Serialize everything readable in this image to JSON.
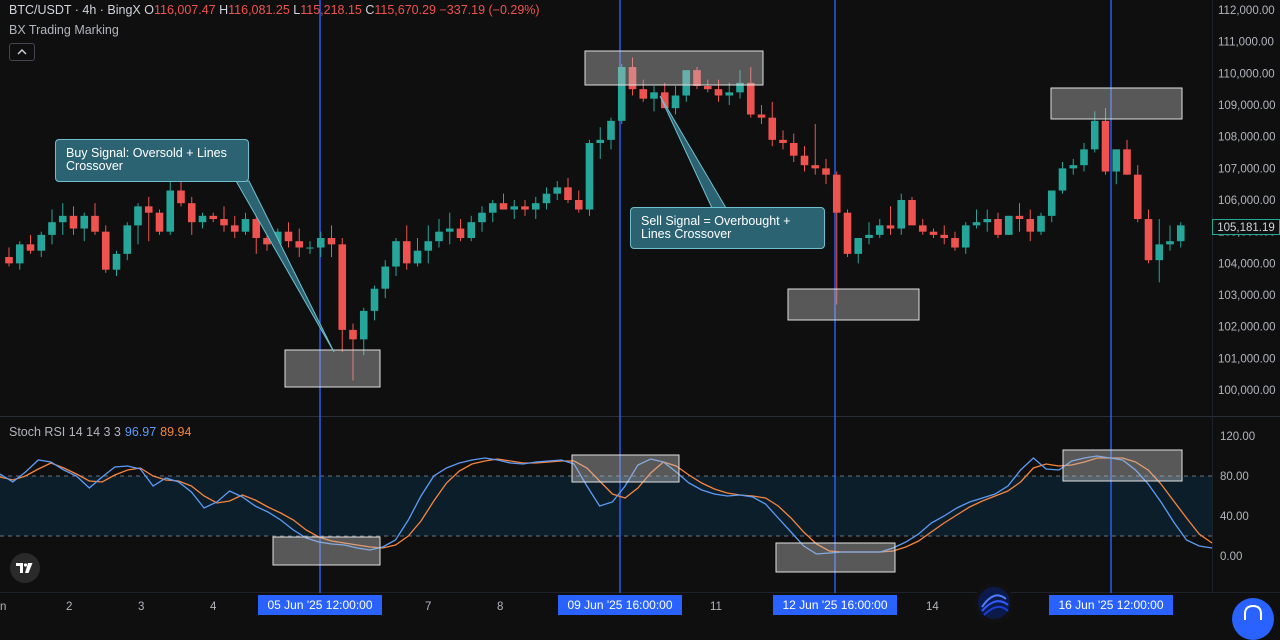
{
  "header": {
    "symbol": "BTC/USDT · 4h · BingX",
    "open_label": "O",
    "open": "116,007.47",
    "high_label": "H",
    "high": "116,081.25",
    "low_label": "L",
    "low": "115,218.15",
    "close_label": "C",
    "close": "115,670.29",
    "change": "−337.19 (−0.29%)"
  },
  "indicator_label": "BX Trading Marking",
  "stoch": {
    "name": "Stoch RSI 14 14 3 3",
    "k": "96.97",
    "d": "89.94"
  },
  "price_axis": [
    "112,000.00",
    "111,000.00",
    "110,000.00",
    "109,000.00",
    "108,000.00",
    "107,000.00",
    "106,000.00",
    "105,000.00",
    "104,000.00",
    "103,000.00",
    "102,000.00",
    "101,000.00",
    "100,000.00"
  ],
  "current_price": "105,181.19",
  "stoch_axis": [
    "120.00",
    "80.00",
    "40.00",
    "0.00"
  ],
  "time_axis": [
    "n",
    "2",
    "3",
    "4",
    "7",
    "8",
    "11",
    "14"
  ],
  "time_badges": [
    "05 Jun '25   12:00:00",
    "09 Jun '25   16:00:00",
    "12 Jun '25   16:00:00",
    "16 Jun '25   12:00:00"
  ],
  "callouts": {
    "buy": "Buy Signal: Oversold + Lines Crossover",
    "sell": "Sell Signal = Overbought + Lines Crossover"
  },
  "colors": {
    "up": "#26a69a",
    "down": "#ef5350",
    "k_line": "#5b9cf6",
    "d_line": "#f7853e",
    "marker": "#2962ff",
    "background": "#0f0f0f"
  },
  "chart_data": {
    "type": "candlestick",
    "interval": "4h",
    "ylim": [
      99700,
      112100
    ],
    "candles": [
      [
        104200,
        104500,
        103900,
        104000
      ],
      [
        104000,
        104700,
        103800,
        104600
      ],
      [
        104600,
        104900,
        104300,
        104400
      ],
      [
        104400,
        105000,
        104200,
        104900
      ],
      [
        104900,
        105700,
        104600,
        105300
      ],
      [
        105300,
        105900,
        104900,
        105500
      ],
      [
        105500,
        105800,
        104900,
        105100
      ],
      [
        105100,
        105600,
        104700,
        105500
      ],
      [
        105500,
        105900,
        104900,
        105000
      ],
      [
        105000,
        105200,
        103700,
        103800
      ],
      [
        103800,
        104400,
        103600,
        104300
      ],
      [
        104300,
        105300,
        104100,
        105200
      ],
      [
        105200,
        105900,
        104600,
        105800
      ],
      [
        105800,
        106100,
        104700,
        105600
      ],
      [
        105600,
        105700,
        104900,
        105000
      ],
      [
        105000,
        106800,
        104900,
        106300
      ],
      [
        106300,
        106600,
        105800,
        105900
      ],
      [
        105900,
        106100,
        104900,
        105300
      ],
      [
        105300,
        105600,
        105100,
        105500
      ],
      [
        105500,
        105600,
        105300,
        105400
      ],
      [
        105400,
        105800,
        105000,
        105200
      ],
      [
        105200,
        105500,
        104800,
        105000
      ],
      [
        105000,
        105600,
        104900,
        105400
      ],
      [
        105400,
        105600,
        104300,
        104800
      ],
      [
        104800,
        105000,
        104400,
        104600
      ],
      [
        104600,
        105100,
        104400,
        105000
      ],
      [
        105000,
        105300,
        104500,
        104700
      ],
      [
        104700,
        105100,
        104200,
        104500
      ],
      [
        104500,
        104700,
        104300,
        104500
      ],
      [
        104500,
        105000,
        104200,
        104800
      ],
      [
        104800,
        105200,
        104200,
        104600
      ],
      [
        104600,
        104800,
        101200,
        101900
      ],
      [
        101900,
        102100,
        100300,
        101600
      ],
      [
        101600,
        102600,
        101100,
        102500
      ],
      [
        102500,
        103300,
        102200,
        103200
      ],
      [
        103200,
        104100,
        102900,
        103900
      ],
      [
        103900,
        104800,
        103600,
        104700
      ],
      [
        104700,
        105200,
        103800,
        104000
      ],
      [
        104000,
        104800,
        103900,
        104400
      ],
      [
        104400,
        105200,
        104000,
        104700
      ],
      [
        104700,
        105400,
        104500,
        105000
      ],
      [
        105000,
        105600,
        104600,
        105100
      ],
      [
        105100,
        105400,
        104700,
        104800
      ],
      [
        104800,
        105500,
        104700,
        105300
      ],
      [
        105300,
        105800,
        105000,
        105600
      ],
      [
        105600,
        106000,
        105300,
        105900
      ],
      [
        105900,
        106200,
        105700,
        105700
      ],
      [
        105700,
        106000,
        105400,
        105800
      ],
      [
        105800,
        106000,
        105500,
        105700
      ],
      [
        105700,
        106100,
        105400,
        105900
      ],
      [
        105900,
        106400,
        105700,
        106200
      ],
      [
        106200,
        106600,
        106000,
        106400
      ],
      [
        106400,
        106700,
        105900,
        106000
      ],
      [
        106000,
        106300,
        105600,
        105700
      ],
      [
        105700,
        107900,
        105500,
        107800
      ],
      [
        107800,
        108300,
        107300,
        107900
      ],
      [
        107900,
        108600,
        107600,
        108500
      ],
      [
        108500,
        110300,
        108400,
        110200
      ],
      [
        110200,
        110500,
        109300,
        109500
      ],
      [
        109500,
        109800,
        109100,
        109200
      ],
      [
        109200,
        109600,
        108800,
        109400
      ],
      [
        109400,
        109700,
        108900,
        108900
      ],
      [
        108900,
        109600,
        108700,
        109300
      ],
      [
        109300,
        110100,
        109100,
        110100
      ],
      [
        110100,
        110200,
        109500,
        109600
      ],
      [
        109600,
        109800,
        109400,
        109500
      ],
      [
        109500,
        109800,
        109100,
        109300
      ],
      [
        109300,
        109700,
        109000,
        109400
      ],
      [
        109400,
        110100,
        109200,
        109700
      ],
      [
        109700,
        110200,
        108600,
        108700
      ],
      [
        108700,
        109000,
        108400,
        108600
      ],
      [
        108600,
        109100,
        107700,
        107900
      ],
      [
        107900,
        108200,
        107600,
        107800
      ],
      [
        107800,
        108100,
        107200,
        107400
      ],
      [
        107400,
        107700,
        106900,
        107100
      ],
      [
        107100,
        108400,
        106800,
        107000
      ],
      [
        107000,
        107300,
        106500,
        106800
      ],
      [
        106800,
        106900,
        102700,
        105600
      ],
      [
        105600,
        105700,
        104200,
        104300
      ],
      [
        104300,
        104800,
        104000,
        104800
      ],
      [
        104800,
        105300,
        104600,
        104900
      ],
      [
        104900,
        105400,
        104800,
        105200
      ],
      [
        105200,
        105800,
        104900,
        105100
      ],
      [
        105100,
        106200,
        104900,
        106000
      ],
      [
        106000,
        106100,
        105200,
        105200
      ],
      [
        105200,
        105400,
        104900,
        105000
      ],
      [
        105000,
        105100,
        104800,
        104900
      ],
      [
        104900,
        105200,
        104600,
        104800
      ],
      [
        104800,
        105000,
        104400,
        104500
      ],
      [
        104500,
        105300,
        104300,
        105200
      ],
      [
        105200,
        105700,
        105100,
        105300
      ],
      [
        105300,
        105700,
        105000,
        105400
      ],
      [
        105400,
        105600,
        104800,
        104900
      ],
      [
        104900,
        105500,
        104900,
        105500
      ],
      [
        105500,
        105900,
        105000,
        105400
      ],
      [
        105400,
        105700,
        104700,
        105000
      ],
      [
        105000,
        105600,
        104900,
        105500
      ],
      [
        105500,
        106300,
        105300,
        106300
      ],
      [
        106300,
        107200,
        106200,
        107000
      ],
      [
        107000,
        107300,
        106800,
        107100
      ],
      [
        107100,
        107800,
        106900,
        107600
      ],
      [
        107600,
        108800,
        107500,
        108500
      ],
      [
        108500,
        108900,
        106800,
        106900
      ],
      [
        106900,
        107600,
        106500,
        107600
      ],
      [
        107600,
        107900,
        106800,
        106800
      ],
      [
        106800,
        107100,
        105300,
        105400
      ],
      [
        105400,
        105700,
        104000,
        104100
      ],
      [
        104100,
        105400,
        103400,
        104600
      ],
      [
        104600,
        105200,
        104400,
        104700
      ],
      [
        104700,
        105300,
        104500,
        105200
      ]
    ],
    "stoch_k": [
      82,
      74,
      84,
      96,
      94,
      86,
      80,
      68,
      79,
      89,
      90,
      87,
      70,
      78,
      74,
      64,
      48,
      54,
      65,
      59,
      50,
      44,
      36,
      26,
      18,
      14,
      12,
      11,
      8,
      6,
      9,
      16,
      36,
      60,
      80,
      88,
      93,
      96,
      98,
      96,
      93,
      92,
      94,
      95,
      96,
      92,
      70,
      50,
      54,
      70,
      91,
      97,
      94,
      84,
      73,
      66,
      62,
      60,
      61,
      59,
      52,
      38,
      24,
      10,
      2,
      3,
      4,
      4,
      4,
      4,
      8,
      14,
      22,
      33,
      40,
      48,
      54,
      58,
      62,
      70,
      86,
      98,
      87,
      86,
      95,
      98,
      100,
      98,
      96,
      86,
      72,
      54,
      34,
      16,
      10,
      8
    ],
    "stoch_d": [
      79,
      76,
      80,
      87,
      93,
      88,
      82,
      75,
      74,
      81,
      86,
      88,
      80,
      76,
      75,
      70,
      60,
      53,
      55,
      61,
      56,
      49,
      43,
      36,
      26,
      19,
      15,
      13,
      11,
      9,
      8,
      11,
      20,
      35,
      55,
      73,
      85,
      92,
      95,
      97,
      95,
      93,
      93,
      94,
      95,
      95,
      88,
      75,
      62,
      58,
      68,
      83,
      94,
      90,
      81,
      73,
      67,
      63,
      61,
      60,
      58,
      50,
      38,
      24,
      12,
      5,
      4,
      4,
      4,
      4,
      5,
      9,
      15,
      24,
      33,
      41,
      49,
      55,
      60,
      65,
      74,
      88,
      92,
      90,
      91,
      94,
      98,
      98,
      98,
      94,
      86,
      72,
      55,
      38,
      22,
      13
    ],
    "stoch_ylim": [
      -10,
      132
    ],
    "overbought": 80,
    "oversold": 20,
    "vertical_markers": [
      "05 Jun '25 12:00:00",
      "09 Jun '25 16:00:00",
      "12 Jun '25 16:00:00",
      "16 Jun '25 12:00:00"
    ]
  }
}
